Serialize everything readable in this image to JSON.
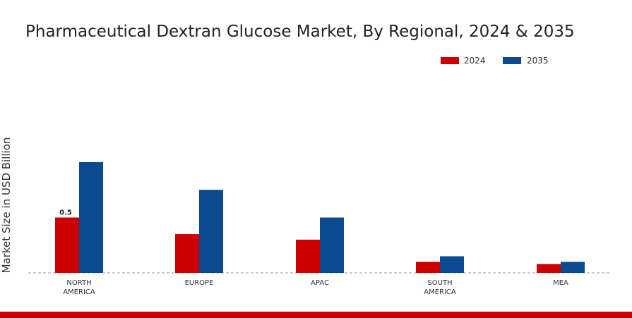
{
  "chart_data": {
    "type": "bar",
    "title": "Pharmaceutical Dextran Glucose Market, By Regional, 2024 & 2035",
    "ylabel": "Market Size in USD Billion",
    "xlabel": "",
    "categories": [
      [
        "NORTH",
        "AMERICA"
      ],
      [
        "EUROPE"
      ],
      [
        "APAC"
      ],
      [
        "SOUTH",
        "AMERICA"
      ],
      [
        "MEA"
      ]
    ],
    "series": [
      {
        "name": "2024",
        "color": "#cc0000",
        "values": [
          0.5,
          0.35,
          0.3,
          0.1,
          0.08
        ]
      },
      {
        "name": "2035",
        "color": "#0b4a8f",
        "values": [
          1.0,
          0.75,
          0.5,
          0.15,
          0.1
        ]
      }
    ],
    "data_labels": [
      {
        "series": 0,
        "index": 0,
        "text": "0.5"
      }
    ],
    "ylim": [
      0,
      1.45
    ],
    "grid": false,
    "legend_placement": "top-right",
    "footer_color": "#cc0000"
  }
}
